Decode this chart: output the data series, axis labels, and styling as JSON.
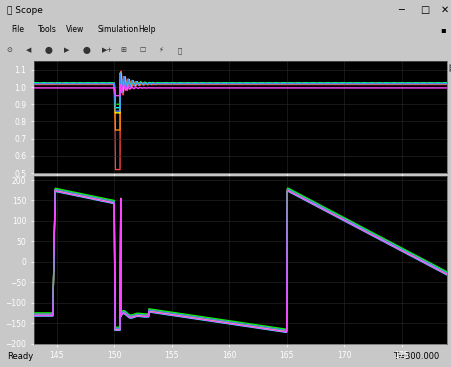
{
  "window_title": "Scope",
  "menu_items": [
    "File",
    "Tools",
    "View",
    "Simulation",
    "Help"
  ],
  "status_left": "Ready",
  "status_right": "T=300.000",
  "top_plot": {
    "ylim": [
      0.5,
      1.15
    ],
    "yticks": [
      0.5,
      0.6,
      0.7,
      0.8,
      0.9,
      1.0,
      1.1
    ],
    "xlim": [
      143,
      179
    ]
  },
  "bottom_plot": {
    "ylim": [
      -200,
      210
    ],
    "yticks": [
      -200,
      -150,
      -100,
      -50,
      0,
      50,
      100,
      150,
      200
    ],
    "xlim": [
      143,
      179
    ],
    "xticks": [
      145,
      150,
      155,
      160,
      165,
      170,
      175
    ]
  },
  "line_colors": [
    "#ff4444",
    "#ff8800",
    "#ffff00",
    "#00ff00",
    "#00ffff",
    "#4488ff",
    "#ff44ff"
  ],
  "green_dash_color": "#00ff00",
  "fault_start": 150.0,
  "fault_end": 150.5,
  "fault2_start": 165.0,
  "fault2_end": 165.15,
  "t_start": 143,
  "t_end": 179,
  "titlebar_color": "#f0f0f0",
  "titlebar_text": "#000000",
  "plot_bg": "#000000",
  "grid_color": "#2a2a2a",
  "tick_color": "#ffffff",
  "frame_color": "#c8c8c8"
}
